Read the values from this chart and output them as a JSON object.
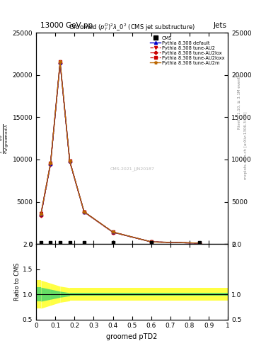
{
  "title_top_left": "13000 GeV pp",
  "title_top_right": "Jets",
  "plot_title": "Groomed $(p_T^D)^2\\lambda\\_0^2$ (CMS jet substructure)",
  "ylabel_ratio": "Ratio to CMS",
  "xlabel": "groomed pTD2",
  "right_label1": "Rivet 3.1.10, ≥ 3.1M events",
  "right_label2": "mcplots.cern.ch [arXiv:1306.3436]",
  "watermark": "CMS-2021_JJN20187",
  "main_x": [
    0.025,
    0.075,
    0.125,
    0.175,
    0.25,
    0.4,
    0.6,
    0.85
  ],
  "main_y_default": [
    3500,
    9500,
    21500,
    9800,
    3800,
    1400,
    250,
    100
  ],
  "main_y_au2": [
    3600,
    9600,
    21600,
    9850,
    3820,
    1420,
    255,
    105
  ],
  "main_y_au2lox": [
    3400,
    9400,
    21400,
    9750,
    3780,
    1380,
    245,
    95
  ],
  "main_y_au2loxx": [
    3450,
    9450,
    21450,
    9800,
    3790,
    1390,
    248,
    98
  ],
  "main_y_au2m": [
    3550,
    9550,
    21550,
    9820,
    3810,
    1410,
    252,
    102
  ],
  "cms_x": [
    0.025,
    0.075,
    0.125,
    0.175,
    0.25,
    0.4,
    0.6,
    0.85
  ],
  "cms_y": [
    200,
    200,
    200,
    200,
    200,
    200,
    200,
    200
  ],
  "ylim_main": [
    0,
    25000
  ],
  "ylim_ratio": [
    0.5,
    2.0
  ],
  "xlim": [
    0.0,
    1.0
  ],
  "color_default": "#0000cc",
  "color_au2": "#cc0000",
  "color_au2lox": "#cc0000",
  "color_au2loxx": "#cc0000",
  "color_au2m": "#bb6600",
  "bg_color": "#ffffff",
  "yticks_main": [
    0,
    5000,
    10000,
    15000,
    20000,
    25000
  ],
  "yticks_ratio": [
    0.5,
    1.0,
    1.5,
    2.0
  ],
  "xticks": [
    0.0,
    0.1,
    0.2,
    0.3,
    0.4,
    0.5,
    0.6,
    0.7,
    0.8,
    0.9,
    1.0
  ]
}
